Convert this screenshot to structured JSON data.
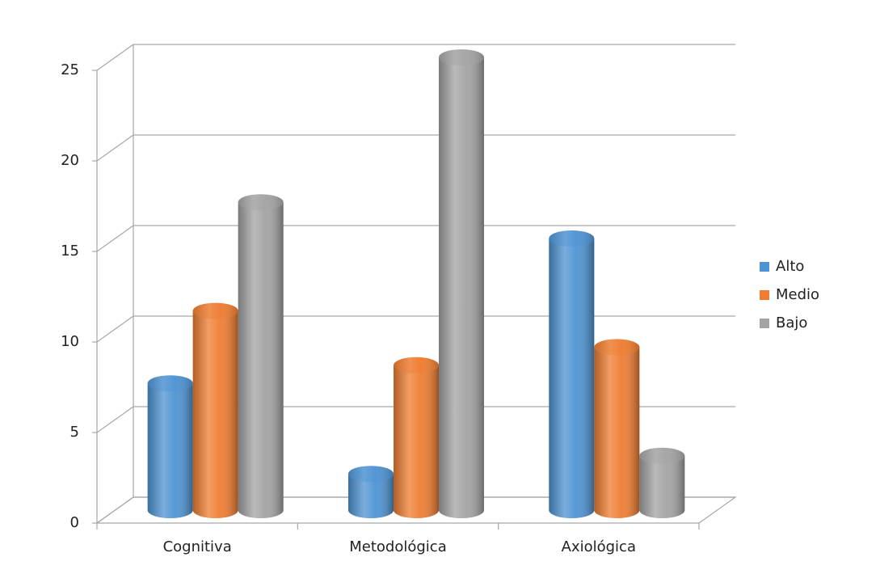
{
  "chart_data": {
    "type": "bar",
    "categories": [
      "Cognitiva",
      "Metodológica",
      "Axiológica"
    ],
    "series": [
      {
        "name": "Alto",
        "color": "#4e93d3",
        "values": [
          7,
          2,
          15
        ]
      },
      {
        "name": "Medio",
        "color": "#ee7d31",
        "values": [
          11,
          8,
          9
        ]
      },
      {
        "name": "Bajo",
        "color": "#a3a3a3",
        "values": [
          17,
          25,
          3
        ]
      }
    ],
    "ylim": [
      0,
      25
    ],
    "yticks": [
      0,
      5,
      10,
      15,
      20,
      25
    ],
    "grid": true,
    "legend": "right"
  }
}
